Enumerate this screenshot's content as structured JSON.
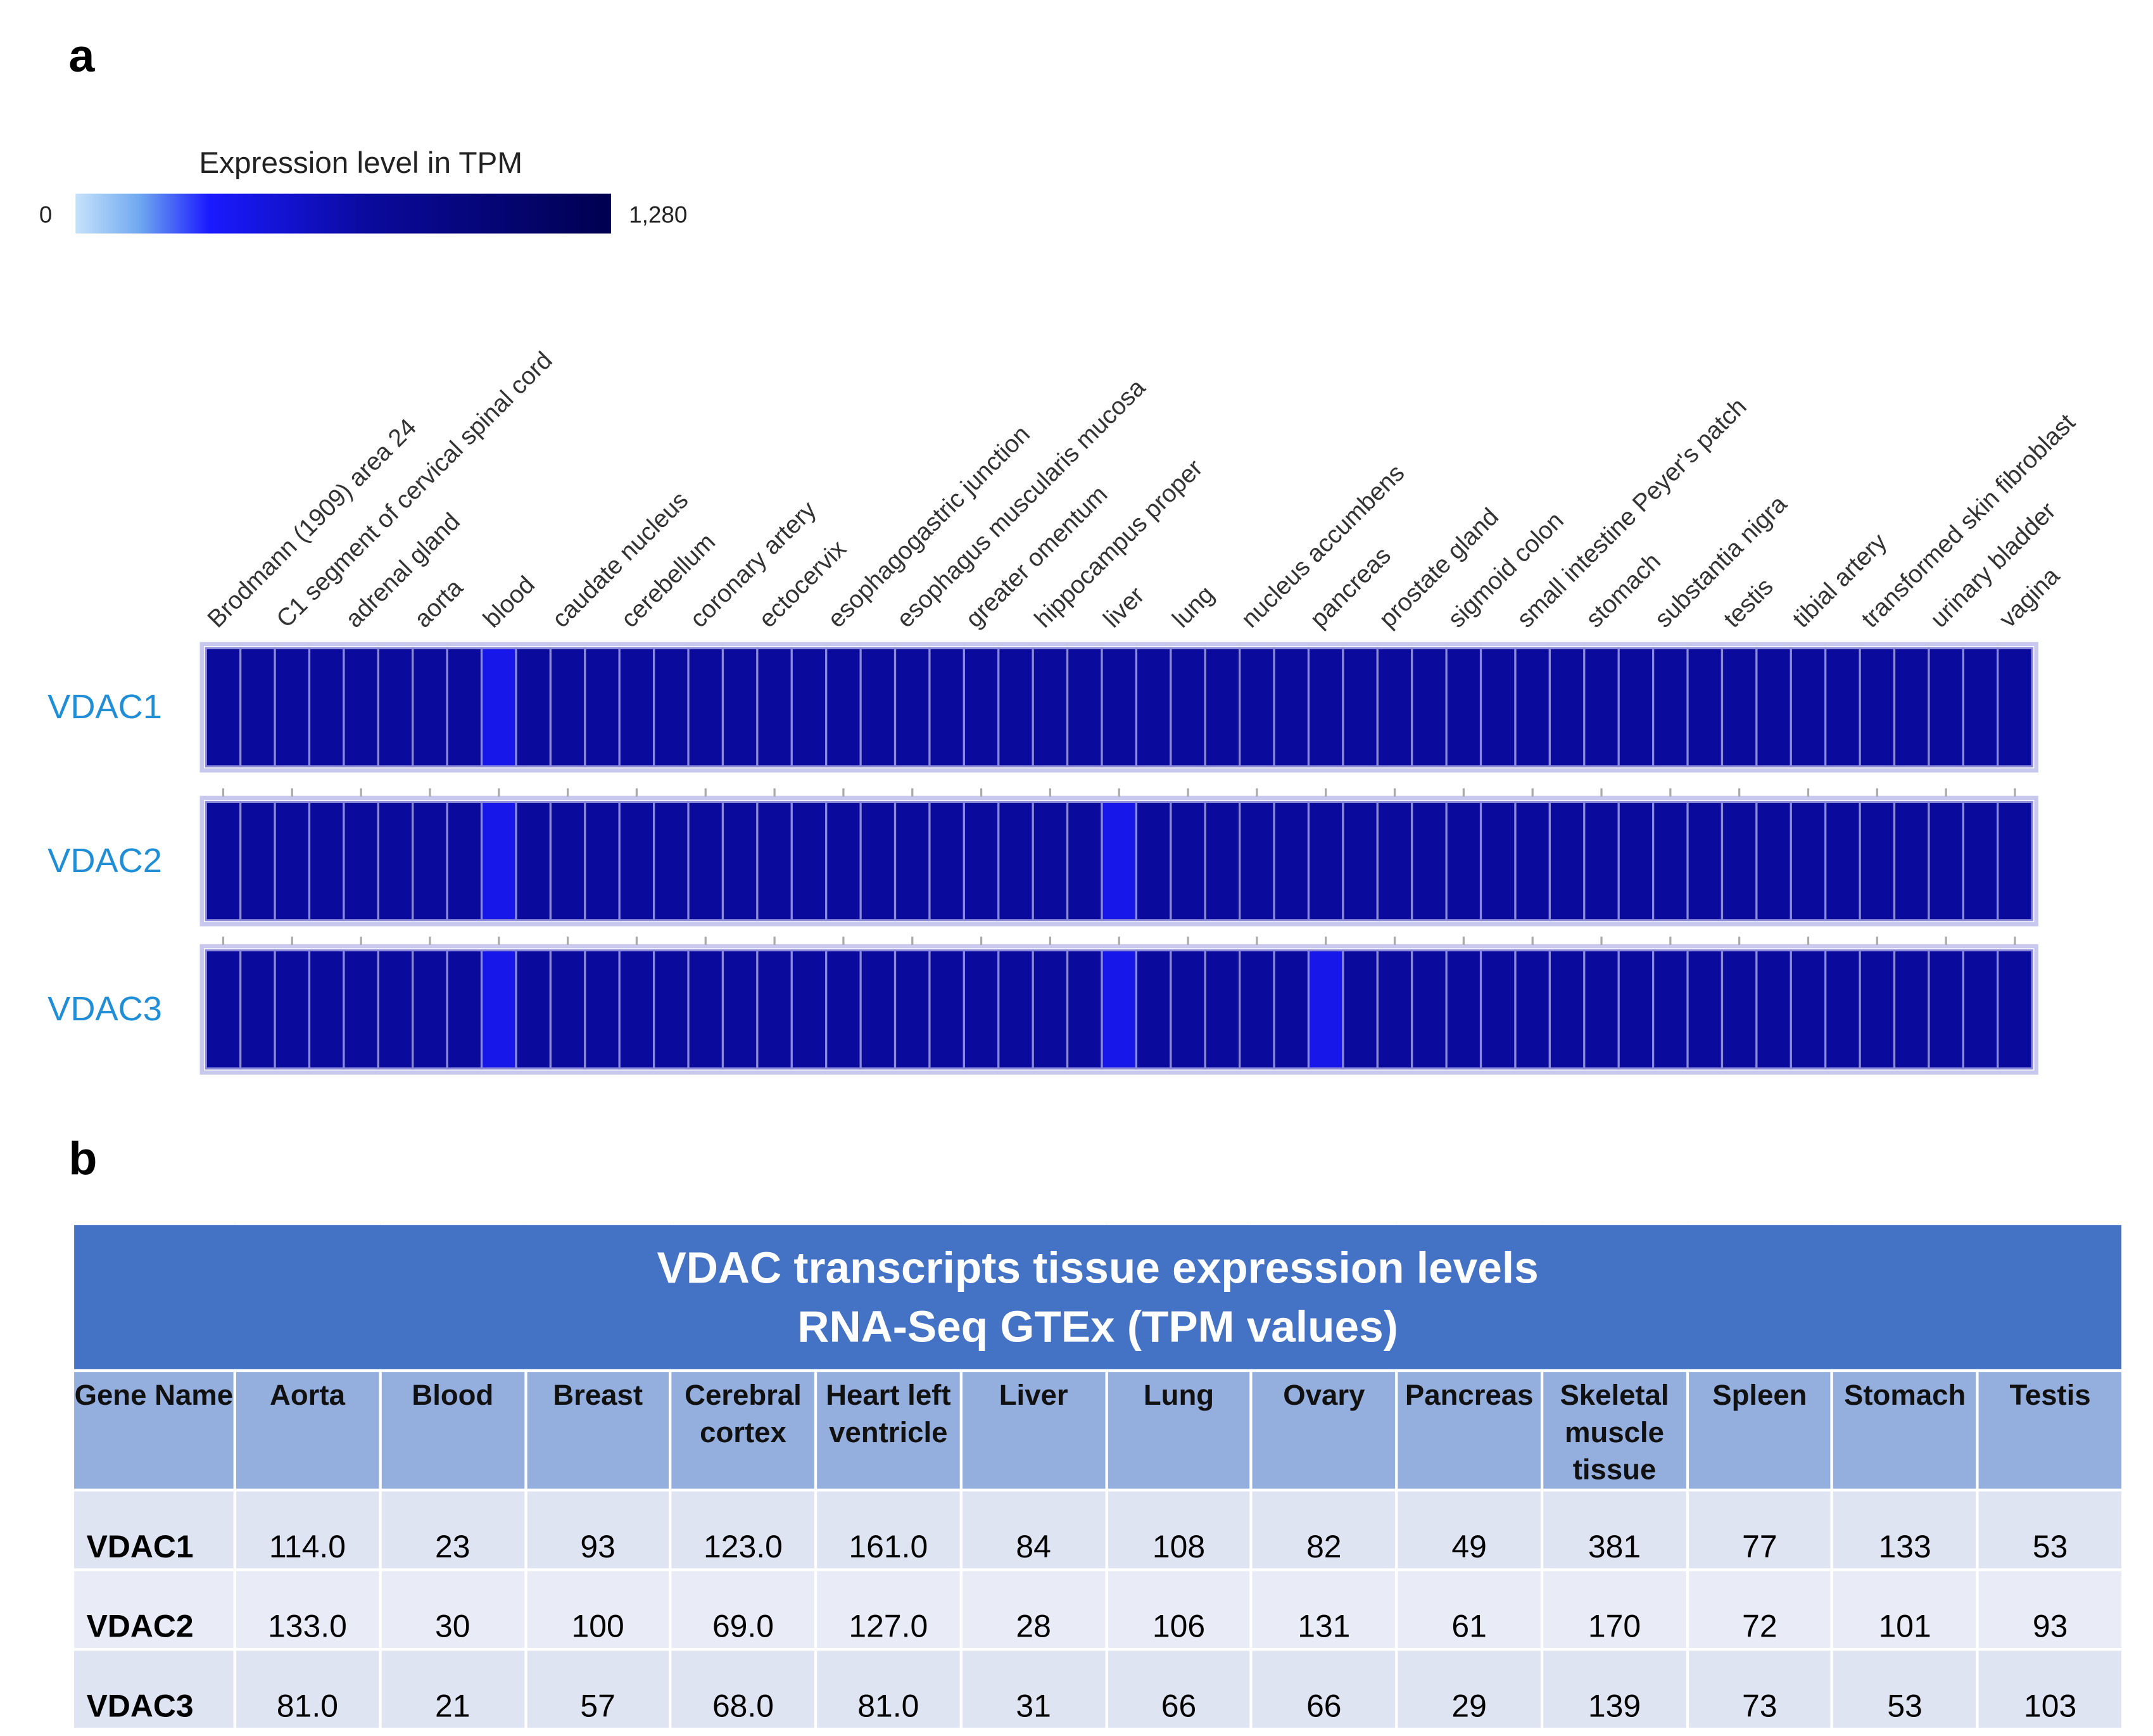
{
  "panel_labels": [
    "a",
    "b"
  ],
  "chart_data": {
    "type": "heatmap",
    "colorbar_title": "Expression level in TPM",
    "clim": [
      0,
      1280
    ],
    "cticks": [
      0,
      {
        "value": 1280,
        "label": "1,280"
      }
    ],
    "categories": [
      "Brodmann (1909) area 24",
      null,
      "C1 segment of cervical spinal cord",
      null,
      "adrenal gland",
      null,
      "aorta",
      null,
      "blood",
      null,
      "caudate nucleus",
      null,
      "cerebellum",
      null,
      "coronary artery",
      null,
      "ectocervix",
      null,
      "esophagogastric junction",
      null,
      "esophagus muscularis mucosa",
      null,
      "greater omentum",
      null,
      "hippocampus proper",
      null,
      "liver",
      null,
      "lung",
      null,
      "nucleus accumbens",
      null,
      "pancreas",
      null,
      "prostate gland",
      null,
      "sigmoid colon",
      null,
      "small intestine Peyer's patch",
      null,
      "stomach",
      null,
      "substantia nigra",
      null,
      "testis",
      null,
      "tibial artery",
      null,
      "transformed skin fibroblast",
      null,
      "urinary bladder",
      null,
      "vagina"
    ],
    "series": [
      {
        "name": "VDAC1",
        "values": [
          700,
          700,
          700,
          700,
          700,
          700,
          700,
          700,
          400,
          700,
          700,
          700,
          700,
          700,
          700,
          700,
          700,
          700,
          700,
          700,
          700,
          700,
          700,
          700,
          700,
          700,
          700,
          700,
          700,
          700,
          700,
          700,
          700,
          700,
          700,
          700,
          700,
          700,
          700,
          700,
          700,
          700,
          700,
          700,
          700,
          700,
          700,
          700,
          700,
          700,
          700,
          700,
          700
        ]
      },
      {
        "name": "VDAC2",
        "values": [
          700,
          700,
          700,
          700,
          700,
          700,
          700,
          700,
          400,
          700,
          700,
          700,
          700,
          700,
          700,
          700,
          700,
          700,
          700,
          700,
          700,
          700,
          700,
          700,
          700,
          700,
          400,
          700,
          700,
          700,
          700,
          700,
          700,
          700,
          700,
          700,
          700,
          700,
          700,
          700,
          700,
          700,
          700,
          700,
          700,
          700,
          700,
          700,
          700,
          700,
          700,
          700,
          700
        ]
      },
      {
        "name": "VDAC3",
        "values": [
          700,
          700,
          700,
          700,
          700,
          700,
          700,
          700,
          400,
          700,
          700,
          700,
          700,
          700,
          700,
          700,
          700,
          700,
          700,
          700,
          700,
          700,
          700,
          700,
          700,
          700,
          400,
          700,
          700,
          700,
          700,
          700,
          400,
          700,
          700,
          700,
          700,
          700,
          700,
          700,
          700,
          700,
          700,
          700,
          700,
          700,
          700,
          700,
          700,
          700,
          700,
          700,
          700
        ]
      }
    ]
  },
  "table": {
    "title_lines": [
      "VDAC transcripts tissue expression levels",
      "RNA-Seq GTEx (TPM values)"
    ],
    "header": [
      "Gene Name",
      "Aorta",
      "Blood",
      "Breast",
      "Cerebral cortex",
      "Heart left ventricle",
      "Liver",
      "Lung",
      "Ovary",
      "Pancreas",
      "Skeletal muscle tissue",
      "Spleen",
      "Stomach",
      "Testis"
    ],
    "rows": [
      [
        "VDAC1",
        "114.0",
        "23",
        "93",
        "123.0",
        "161.0",
        "84",
        "108",
        "82",
        "49",
        "381",
        "77",
        "133",
        "53"
      ],
      [
        "VDAC2",
        "133.0",
        "30",
        "100",
        "69.0",
        "127.0",
        "28",
        "106",
        "131",
        "61",
        "170",
        "72",
        "101",
        "93"
      ],
      [
        "VDAC3",
        "81.0",
        "21",
        "57",
        "68.0",
        "81.0",
        "31",
        "66",
        "66",
        "29",
        "139",
        "73",
        "53",
        "103"
      ]
    ]
  }
}
